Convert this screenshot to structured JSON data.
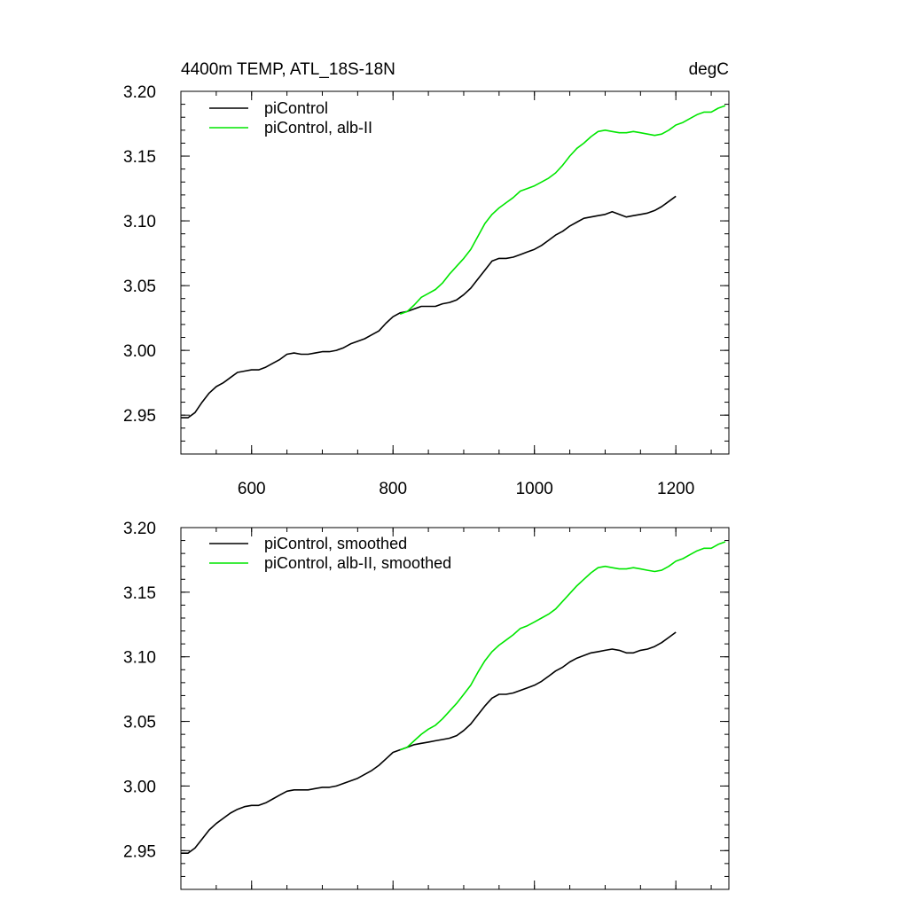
{
  "chart_data": [
    {
      "type": "line",
      "title_left": "4400m TEMP, ATL_18S-18N",
      "title_right": "degC",
      "xlim": [
        500,
        1275
      ],
      "ylim": [
        2.92,
        3.2
      ],
      "x_ticks": [
        600,
        800,
        1000,
        1200
      ],
      "x_tick_labels": [
        "600",
        "800",
        "1000",
        "1200"
      ],
      "x_minor_step": 50,
      "y_ticks": [
        2.95,
        3.0,
        3.05,
        3.1,
        3.15,
        3.2
      ],
      "y_tick_labels": [
        "2.95",
        "3.00",
        "3.05",
        "3.10",
        "3.15",
        "3.20"
      ],
      "y_minor_step": 0.01,
      "legend_position": "top-left",
      "series": [
        {
          "name": "piControl",
          "color": "#000000",
          "x": [
            500,
            510,
            520,
            530,
            540,
            550,
            560,
            570,
            580,
            590,
            600,
            610,
            620,
            630,
            640,
            650,
            660,
            670,
            680,
            690,
            700,
            710,
            720,
            730,
            740,
            750,
            760,
            770,
            780,
            790,
            800,
            810,
            820,
            830,
            840,
            850,
            860,
            870,
            880,
            890,
            900,
            910,
            920,
            930,
            940,
            950,
            960,
            970,
            980,
            990,
            1000,
            1010,
            1020,
            1030,
            1040,
            1050,
            1060,
            1070,
            1080,
            1090,
            1100,
            1110,
            1120,
            1130,
            1140,
            1150,
            1160,
            1170,
            1180,
            1190,
            1200
          ],
          "y": [
            2.948,
            2.948,
            2.952,
            2.96,
            2.967,
            2.972,
            2.975,
            2.979,
            2.983,
            2.984,
            2.985,
            2.985,
            2.987,
            2.99,
            2.993,
            2.997,
            2.998,
            2.997,
            2.997,
            2.998,
            2.999,
            2.999,
            3.0,
            3.002,
            3.005,
            3.007,
            3.009,
            3.012,
            3.015,
            3.021,
            3.026,
            3.029,
            3.03,
            3.032,
            3.034,
            3.034,
            3.034,
            3.036,
            3.037,
            3.039,
            3.043,
            3.048,
            3.055,
            3.062,
            3.069,
            3.071,
            3.071,
            3.072,
            3.074,
            3.076,
            3.078,
            3.081,
            3.085,
            3.089,
            3.092,
            3.096,
            3.099,
            3.102,
            3.103,
            3.104,
            3.105,
            3.107,
            3.105,
            3.103,
            3.104,
            3.105,
            3.106,
            3.108,
            3.111,
            3.115,
            3.119
          ]
        },
        {
          "name": "piControl, alb-II",
          "color": "#00e600",
          "x": [
            810,
            820,
            830,
            840,
            850,
            860,
            870,
            880,
            890,
            900,
            910,
            920,
            930,
            940,
            950,
            960,
            970,
            980,
            990,
            1000,
            1010,
            1020,
            1030,
            1040,
            1050,
            1060,
            1070,
            1080,
            1090,
            1100,
            1110,
            1120,
            1130,
            1140,
            1150,
            1160,
            1170,
            1180,
            1190,
            1200,
            1210,
            1220,
            1230,
            1240,
            1250,
            1260,
            1270
          ],
          "y": [
            3.028,
            3.03,
            3.035,
            3.041,
            3.044,
            3.047,
            3.052,
            3.059,
            3.065,
            3.071,
            3.078,
            3.088,
            3.098,
            3.105,
            3.11,
            3.114,
            3.118,
            3.123,
            3.125,
            3.127,
            3.13,
            3.133,
            3.137,
            3.143,
            3.15,
            3.156,
            3.16,
            3.165,
            3.169,
            3.17,
            3.169,
            3.168,
            3.168,
            3.169,
            3.168,
            3.167,
            3.166,
            3.167,
            3.17,
            3.174,
            3.176,
            3.179,
            3.182,
            3.184,
            3.184,
            3.187,
            3.189
          ]
        }
      ]
    },
    {
      "type": "line",
      "xlim": [
        500,
        1275
      ],
      "ylim": [
        2.92,
        3.2
      ],
      "x_ticks": [
        600,
        800,
        1000,
        1200
      ],
      "x_minor_step": 50,
      "y_ticks": [
        2.95,
        3.0,
        3.05,
        3.1,
        3.15,
        3.2
      ],
      "y_tick_labels": [
        "2.95",
        "3.00",
        "3.05",
        "3.10",
        "3.15",
        "3.20"
      ],
      "y_minor_step": 0.01,
      "legend_position": "top-left",
      "series": [
        {
          "name": "piControl, smoothed",
          "color": "#000000",
          "x": [
            500,
            510,
            520,
            530,
            540,
            550,
            560,
            570,
            580,
            590,
            600,
            610,
            620,
            630,
            640,
            650,
            660,
            670,
            680,
            690,
            700,
            710,
            720,
            730,
            740,
            750,
            760,
            770,
            780,
            790,
            800,
            810,
            820,
            830,
            840,
            850,
            860,
            870,
            880,
            890,
            900,
            910,
            920,
            930,
            940,
            950,
            960,
            970,
            980,
            990,
            1000,
            1010,
            1020,
            1030,
            1040,
            1050,
            1060,
            1070,
            1080,
            1090,
            1100,
            1110,
            1120,
            1130,
            1140,
            1150,
            1160,
            1170,
            1180,
            1190,
            1200
          ],
          "y": [
            2.948,
            2.948,
            2.952,
            2.959,
            2.966,
            2.971,
            2.975,
            2.979,
            2.982,
            2.984,
            2.985,
            2.985,
            2.987,
            2.99,
            2.993,
            2.996,
            2.997,
            2.997,
            2.997,
            2.998,
            2.999,
            2.999,
            3.0,
            3.002,
            3.004,
            3.006,
            3.009,
            3.012,
            3.016,
            3.021,
            3.026,
            3.028,
            3.03,
            3.032,
            3.033,
            3.034,
            3.035,
            3.036,
            3.037,
            3.039,
            3.043,
            3.048,
            3.055,
            3.062,
            3.068,
            3.071,
            3.071,
            3.072,
            3.074,
            3.076,
            3.078,
            3.081,
            3.085,
            3.089,
            3.092,
            3.096,
            3.099,
            3.101,
            3.103,
            3.104,
            3.105,
            3.106,
            3.105,
            3.103,
            3.103,
            3.105,
            3.106,
            3.108,
            3.111,
            3.115,
            3.119
          ]
        },
        {
          "name": "piControl, alb-II, smoothed",
          "color": "#00e600",
          "x": [
            810,
            820,
            830,
            840,
            850,
            860,
            870,
            880,
            890,
            900,
            910,
            920,
            930,
            940,
            950,
            960,
            970,
            980,
            990,
            1000,
            1010,
            1020,
            1030,
            1040,
            1050,
            1060,
            1070,
            1080,
            1090,
            1100,
            1110,
            1120,
            1130,
            1140,
            1150,
            1160,
            1170,
            1180,
            1190,
            1200,
            1210,
            1220,
            1230,
            1240,
            1250,
            1260,
            1270
          ],
          "y": [
            3.028,
            3.03,
            3.035,
            3.04,
            3.044,
            3.047,
            3.052,
            3.058,
            3.064,
            3.071,
            3.078,
            3.088,
            3.097,
            3.104,
            3.109,
            3.113,
            3.117,
            3.122,
            3.124,
            3.127,
            3.13,
            3.133,
            3.137,
            3.143,
            3.149,
            3.155,
            3.16,
            3.165,
            3.169,
            3.17,
            3.169,
            3.168,
            3.168,
            3.169,
            3.168,
            3.167,
            3.166,
            3.167,
            3.17,
            3.174,
            3.176,
            3.179,
            3.182,
            3.184,
            3.184,
            3.187,
            3.189
          ]
        }
      ]
    }
  ]
}
